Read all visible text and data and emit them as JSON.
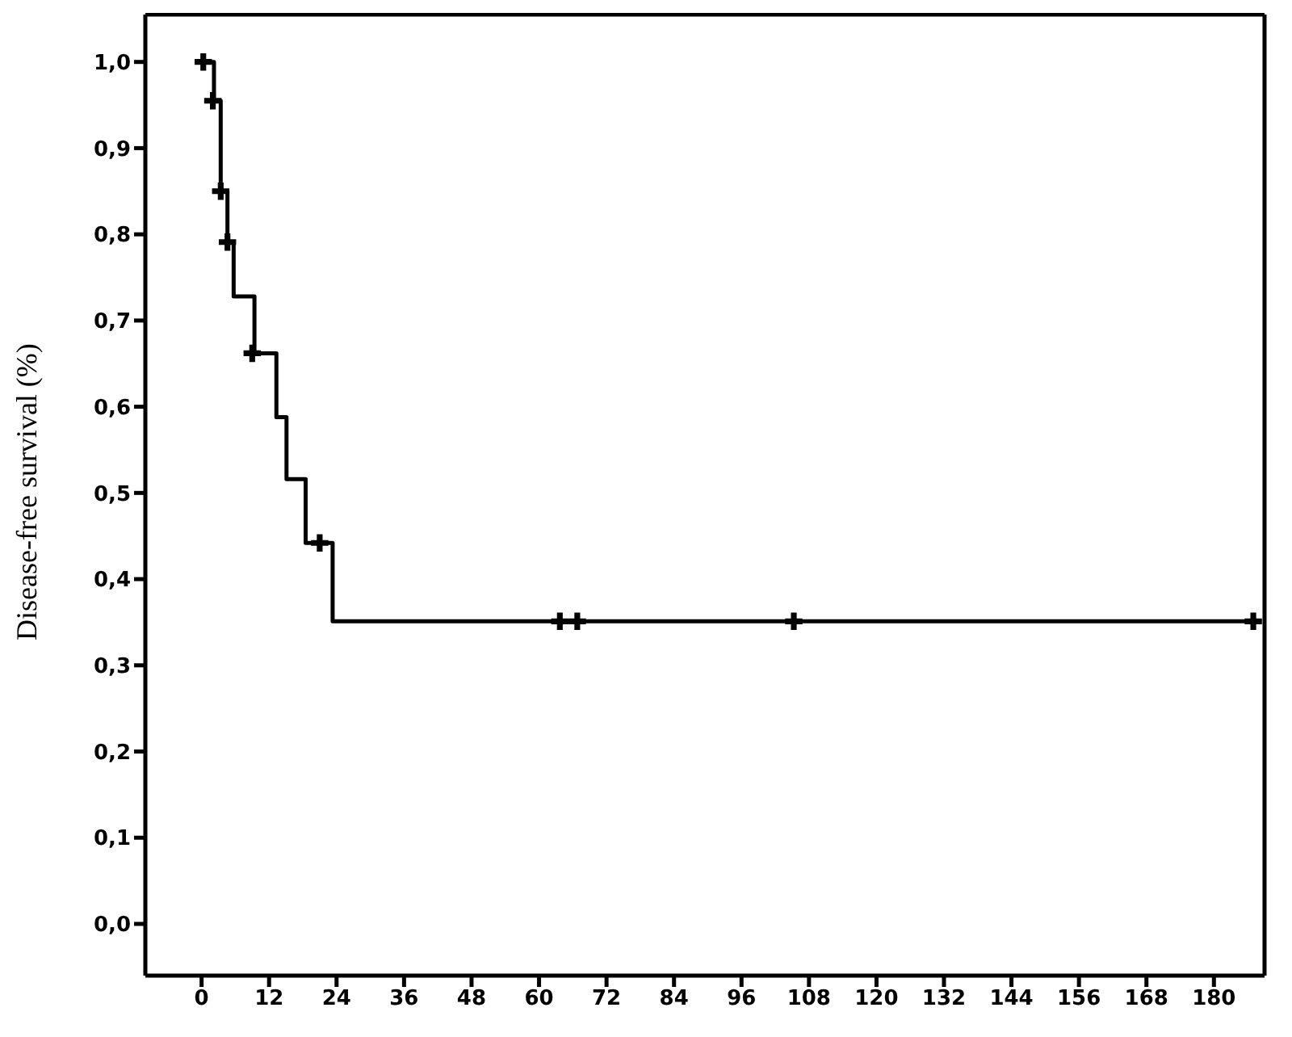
{
  "chart_data": {
    "type": "step",
    "ylabel": "Disease-free survival (%)",
    "xlim": [
      -10,
      189
    ],
    "xticks": [
      0,
      12,
      24,
      36,
      48,
      60,
      72,
      84,
      96,
      108,
      120,
      132,
      144,
      156,
      168,
      180
    ],
    "ylim": [
      -0.06,
      1.055
    ],
    "yticks": [
      {
        "value": 0,
        "label": "0,0"
      },
      {
        "value": 0.1,
        "label": "0,1"
      },
      {
        "value": 0.2,
        "label": "0,2"
      },
      {
        "value": 0.3,
        "label": "0,3"
      },
      {
        "value": 0.4,
        "label": "0,4"
      },
      {
        "value": 0.5,
        "label": "0,5"
      },
      {
        "value": 0.6,
        "label": "0,6"
      },
      {
        "value": 0.7,
        "label": "0,7"
      },
      {
        "value": 0.8,
        "label": "0,8"
      },
      {
        "value": 0.9,
        "label": "0,9"
      },
      {
        "value": 1,
        "label": "1,0"
      }
    ],
    "grid": false,
    "series": [
      {
        "color": "#000000",
        "marker": "none",
        "x": [
          0,
          2.2,
          3.4,
          4.6,
          5.7,
          9.4,
          13.3,
          15.1,
          18.5,
          23.3,
          188
        ],
        "values": [
          1,
          0.955,
          0.85,
          0.791,
          0.728,
          0.662,
          0.588,
          0.516,
          0.442,
          0.351,
          0.351
        ]
      },
      {
        "type": "scatter",
        "color": "#000000",
        "marker": "cross",
        "x": [
          0.3,
          2,
          3.4,
          4.6,
          9,
          21,
          63.7,
          66.8,
          105.3,
          187
        ],
        "values": [
          1,
          0.955,
          0.85,
          0.791,
          0.662,
          0.442,
          0.351,
          0.351,
          0.351,
          0.351
        ]
      }
    ]
  }
}
